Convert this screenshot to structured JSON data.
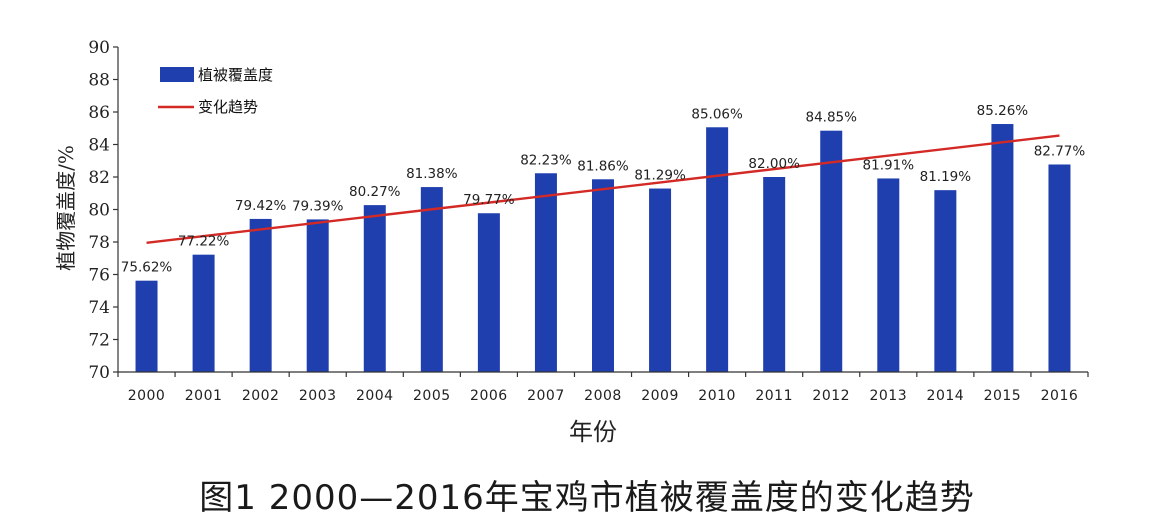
{
  "chart_data": {
    "type": "bar",
    "categories": [
      "2000",
      "2001",
      "2002",
      "2003",
      "2004",
      "2005",
      "2006",
      "2007",
      "2008",
      "2009",
      "2010",
      "2011",
      "2012",
      "2013",
      "2014",
      "2015",
      "2016"
    ],
    "series": [
      {
        "name": "植被覆盖度",
        "values": [
          75.62,
          77.22,
          79.42,
          79.39,
          80.27,
          81.38,
          79.77,
          82.23,
          81.86,
          81.29,
          85.06,
          82.0,
          84.85,
          81.91,
          81.19,
          85.26,
          82.77
        ],
        "data_labels": [
          "75.62%",
          "77.22%",
          "79.42%",
          "79.39%",
          "80.27%",
          "81.38%",
          "79.77%",
          "82.23%",
          "81.86%",
          "81.29%",
          "85.06%",
          "82.00%",
          "84.85%",
          "81.91%",
          "81.19%",
          "85.26%",
          "82.77%"
        ],
        "color": "#1f3fae"
      }
    ],
    "trendline": {
      "name": "变化趋势",
      "start": 77.95,
      "end": 84.55,
      "color": "#d42a26"
    },
    "xlabel": "年份",
    "ylabel": "植物覆盖度/%",
    "ylim": [
      70,
      90
    ],
    "yticks": [
      70,
      72,
      74,
      76,
      78,
      80,
      82,
      84,
      86,
      88,
      90
    ],
    "grid": false,
    "legend_position": "top-left"
  },
  "caption": "图1  2000—2016年宝鸡市植被覆盖度的变化趋势"
}
